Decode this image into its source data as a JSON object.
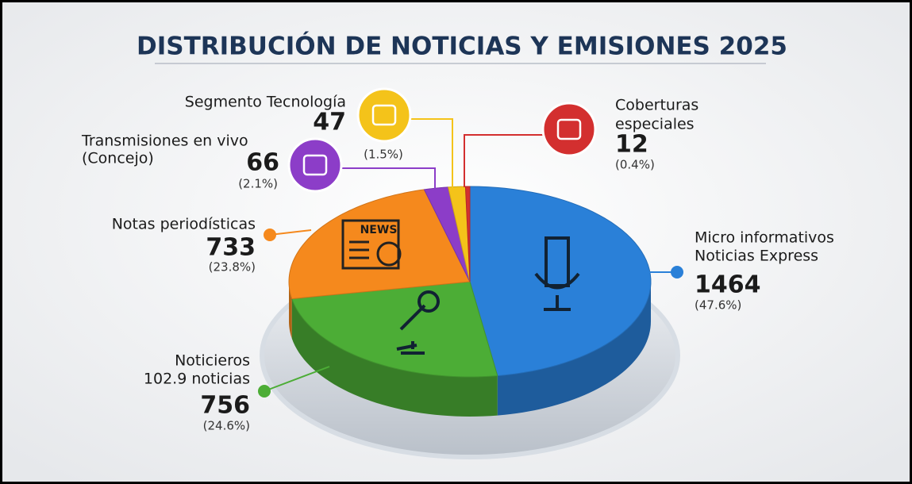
{
  "chart_data": {
    "type": "pie3d",
    "title": "DISTRIBUCIÓN DE NOTICIAS Y EMISIONES 2025",
    "categories": [
      [
        "Micro informativos",
        "Noticias Express"
      ],
      [
        "Noticieros",
        "102.9 noticias"
      ],
      [
        "Notas periodísticas"
      ],
      [
        "Transmisiones en vivo",
        "(Concejo)"
      ],
      [
        "Segmento Tecnología"
      ],
      [
        "Coberturas",
        "especiales"
      ]
    ],
    "values": [
      1464,
      756,
      733,
      66,
      47,
      12
    ],
    "shares": {
      "values": [
        47.6,
        24.6,
        23.8,
        2.1,
        1.5,
        0.4
      ],
      "value_labels": [
        "(47.6%)",
        "(24.6%)",
        "(23.8%)",
        "(2.1%)",
        "(1.5%)",
        "(0.4%)"
      ]
    },
    "colors": [
      "#2a80d8",
      "#4cad36",
      "#f5891d",
      "#8c3dc8",
      "#f4c31a",
      "#d32f2f"
    ],
    "icon_text": "NEWS"
  }
}
